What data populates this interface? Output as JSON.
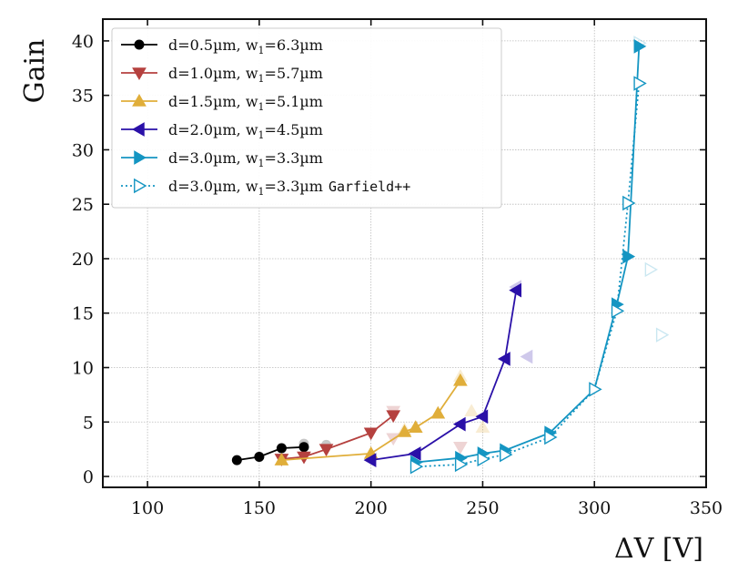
{
  "chart_data": {
    "type": "line",
    "title": "",
    "xlabel": "ΔV [V]",
    "ylabel": "Gain",
    "xlim": [
      80,
      350
    ],
    "ylim": [
      -1,
      42
    ],
    "xticks": [
      100,
      150,
      200,
      250,
      300,
      350
    ],
    "yticks": [
      0,
      5,
      10,
      15,
      20,
      25,
      30,
      35,
      40
    ],
    "grid": true,
    "legend_location": "top-left",
    "series": [
      {
        "name": "d=0.5µm, w₁=6.3µm",
        "label_main": "d=0.5µm, w",
        "label_sub": "1",
        "label_rest": "=6.3µm",
        "color": "#000000",
        "marker": "circle",
        "line": "solid",
        "x": [
          140,
          150,
          160,
          170
        ],
        "y": [
          1.5,
          1.8,
          2.6,
          2.7
        ],
        "faded_points": [
          [
            170,
            3.0
          ],
          [
            180,
            2.9
          ]
        ]
      },
      {
        "name": "d=1.0µm, w₁=5.7µm",
        "label_main": "d=1.0µm, w",
        "label_sub": "1",
        "label_rest": "=5.7µm",
        "color": "#b5413f",
        "marker": "triangle-down",
        "line": "solid",
        "x": [
          160,
          170,
          180,
          200,
          210
        ],
        "y": [
          1.6,
          1.8,
          2.5,
          4.0,
          5.6
        ],
        "faded_points": [
          [
            210,
            6.0
          ],
          [
            210,
            3.5
          ],
          [
            240,
            2.7
          ]
        ]
      },
      {
        "name": "d=1.5µm, w₁=5.1µm",
        "label_main": "d=1.5µm, w",
        "label_sub": "1",
        "label_rest": "=5.1µm",
        "color": "#e0ae3a",
        "marker": "triangle-up",
        "line": "solid",
        "x": [
          160,
          200,
          215,
          220,
          230,
          240
        ],
        "y": [
          1.5,
          2.1,
          4.1,
          4.5,
          5.8,
          8.8
        ],
        "faded_points": [
          [
            215,
            4.3
          ],
          [
            240,
            9.2
          ],
          [
            245,
            6.0
          ],
          [
            250,
            4.5
          ]
        ]
      },
      {
        "name": "d=2.0µm, w₁=4.5µm",
        "label_main": "d=2.0µm, w",
        "label_sub": "1",
        "label_rest": "=4.5µm",
        "color": "#2a10a8",
        "marker": "triangle-left",
        "line": "solid",
        "x": [
          200,
          220,
          240,
          250,
          260,
          265
        ],
        "y": [
          1.5,
          2.1,
          4.8,
          5.5,
          10.8,
          17.1
        ],
        "faded_points": [
          [
            265,
            17.4
          ],
          [
            270,
            11.0
          ]
        ]
      },
      {
        "name": "d=3.0µm, w₁=3.3µm",
        "label_main": "d=3.0µm, w",
        "label_sub": "1",
        "label_rest": "=3.3µm",
        "color": "#1495c2",
        "marker": "triangle-right",
        "line": "solid",
        "x": [
          220,
          240,
          250,
          260,
          280,
          300,
          310,
          315,
          320
        ],
        "y": [
          1.3,
          1.7,
          2.1,
          2.4,
          4.0,
          8.0,
          15.8,
          20.2,
          39.5
        ],
        "faded_points": []
      },
      {
        "name": "d=3.0µm, w₁=3.3µm Garfield++",
        "label_main": "d=3.0µm, w",
        "label_sub": "1",
        "label_rest": "=3.3µm",
        "label_mono": "Garfield++",
        "color": "#1495c2",
        "marker": "triangle-right-open",
        "line": "dotted",
        "x": [
          220,
          240,
          250,
          260,
          280,
          300,
          310,
          315,
          320
        ],
        "y": [
          0.9,
          1.1,
          1.6,
          2.0,
          3.6,
          8.0,
          15.2,
          25.1,
          36.1
        ],
        "faded_points": [
          [
            320,
            39.8
          ],
          [
            325,
            19.0
          ],
          [
            330,
            13.0
          ]
        ]
      }
    ]
  }
}
